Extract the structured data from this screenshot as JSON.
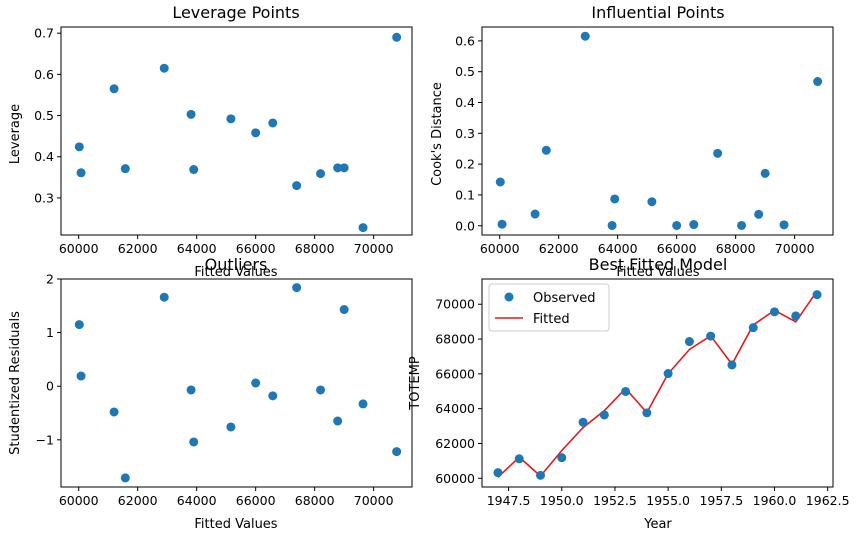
{
  "colors": {
    "marker": "#1f77b4",
    "fit_line": "#e31a1c"
  },
  "chart_data": [
    {
      "type": "scatter",
      "title": "Leverage Points",
      "xlabel": "Fitted Values",
      "ylabel": "Leverage",
      "xlim": [
        59400,
        71300
      ],
      "ylim": [
        0.21,
        0.715
      ],
      "xticks": [
        60000,
        62000,
        64000,
        66000,
        68000,
        70000
      ],
      "yticks": [
        0.3,
        0.4,
        0.5,
        0.6,
        0.7
      ],
      "ytick_labels": [
        "0.3",
        "0.4",
        "0.5",
        "0.6",
        "0.7"
      ],
      "points": [
        [
          60020,
          0.424
        ],
        [
          60080,
          0.361
        ],
        [
          61200,
          0.565
        ],
        [
          61580,
          0.371
        ],
        [
          62900,
          0.615
        ],
        [
          63810,
          0.503
        ],
        [
          63900,
          0.369
        ],
        [
          65160,
          0.492
        ],
        [
          66000,
          0.458
        ],
        [
          66580,
          0.482
        ],
        [
          67390,
          0.33
        ],
        [
          68200,
          0.359
        ],
        [
          68780,
          0.373
        ],
        [
          69000,
          0.373
        ],
        [
          69640,
          0.228
        ],
        [
          70780,
          0.69
        ]
      ]
    },
    {
      "type": "scatter",
      "title": "Influential Points",
      "xlabel": "Fitted Values",
      "ylabel": "Cook's Distance",
      "xlim": [
        59400,
        71300
      ],
      "ylim": [
        -0.03,
        0.645
      ],
      "xticks": [
        60000,
        62000,
        64000,
        66000,
        68000,
        70000
      ],
      "yticks": [
        0.0,
        0.1,
        0.2,
        0.3,
        0.4,
        0.5,
        0.6
      ],
      "ytick_labels": [
        "0.0",
        "0.1",
        "0.2",
        "0.3",
        "0.4",
        "0.5",
        "0.6"
      ],
      "points": [
        [
          60020,
          0.142
        ],
        [
          60080,
          0.005
        ],
        [
          61200,
          0.038
        ],
        [
          61580,
          0.245
        ],
        [
          62900,
          0.615
        ],
        [
          63810,
          0.001
        ],
        [
          63900,
          0.087
        ],
        [
          65160,
          0.078
        ],
        [
          66000,
          0.001
        ],
        [
          66580,
          0.004
        ],
        [
          67390,
          0.235
        ],
        [
          68200,
          0.001
        ],
        [
          68780,
          0.037
        ],
        [
          69000,
          0.17
        ],
        [
          69640,
          0.003
        ],
        [
          70780,
          0.468
        ]
      ]
    },
    {
      "type": "scatter",
      "title": "Outliers",
      "xlabel": "Fitted Values",
      "ylabel": "Studentized Residuals",
      "xlim": [
        59400,
        71300
      ],
      "ylim": [
        -1.88,
        2.0
      ],
      "xticks": [
        60000,
        62000,
        64000,
        66000,
        68000,
        70000
      ],
      "yticks": [
        -1,
        0,
        1,
        2
      ],
      "ytick_labels": [
        "−1",
        "0",
        "1",
        "2"
      ],
      "points": [
        [
          60020,
          1.15
        ],
        [
          60080,
          0.19
        ],
        [
          61200,
          -0.48
        ],
        [
          61580,
          -1.71
        ],
        [
          62900,
          1.66
        ],
        [
          63810,
          -0.07
        ],
        [
          63900,
          -1.04
        ],
        [
          65160,
          -0.76
        ],
        [
          66000,
          0.06
        ],
        [
          66580,
          -0.18
        ],
        [
          67390,
          1.84
        ],
        [
          68200,
          -0.07
        ],
        [
          68780,
          -0.65
        ],
        [
          69000,
          1.43
        ],
        [
          69640,
          -0.33
        ],
        [
          70780,
          -1.22
        ]
      ]
    },
    {
      "type": "line",
      "title": "Best Fitted Model",
      "xlabel": "Year",
      "ylabel": "TOTEMP",
      "xlim": [
        1946.25,
        1962.75
      ],
      "ylim": [
        59500,
        71450
      ],
      "xticks": [
        1947.5,
        1950.0,
        1952.5,
        1955.0,
        1957.5,
        1960.0,
        1962.5
      ],
      "xtick_labels": [
        "1947.5",
        "1950.0",
        "1952.5",
        "1955.0",
        "1957.5",
        "1960.0",
        "1962.5"
      ],
      "yticks": [
        60000,
        62000,
        64000,
        66000,
        68000,
        70000
      ],
      "ytick_labels": [
        "60000",
        "62000",
        "64000",
        "66000",
        "68000",
        "70000"
      ],
      "legend": {
        "position": "upper-left",
        "entries": [
          "Observed",
          "Fitted"
        ]
      },
      "series": [
        {
          "name": "Observed",
          "x": [
            1947,
            1948,
            1949,
            1950,
            1951,
            1952,
            1953,
            1954,
            1955,
            1956,
            1957,
            1958,
            1959,
            1960,
            1961,
            1962
          ],
          "values": [
            60323,
            61122,
            60171,
            61187,
            63221,
            63639,
            64989,
            63761,
            66019,
            67857,
            68169,
            66513,
            68655,
            69564,
            69331,
            70551
          ]
        },
        {
          "name": "Fitted",
          "x": [
            1947,
            1948,
            1949,
            1950,
            1951,
            1952,
            1953,
            1954,
            1955,
            1956,
            1957,
            1958,
            1959,
            1960,
            1961,
            1962
          ],
          "values": [
            60055,
            61216,
            60125,
            61597,
            62911,
            63888,
            65153,
            63774,
            66005,
            67402,
            68186,
            66552,
            68811,
            69650,
            68989,
            70758
          ]
        }
      ]
    }
  ]
}
